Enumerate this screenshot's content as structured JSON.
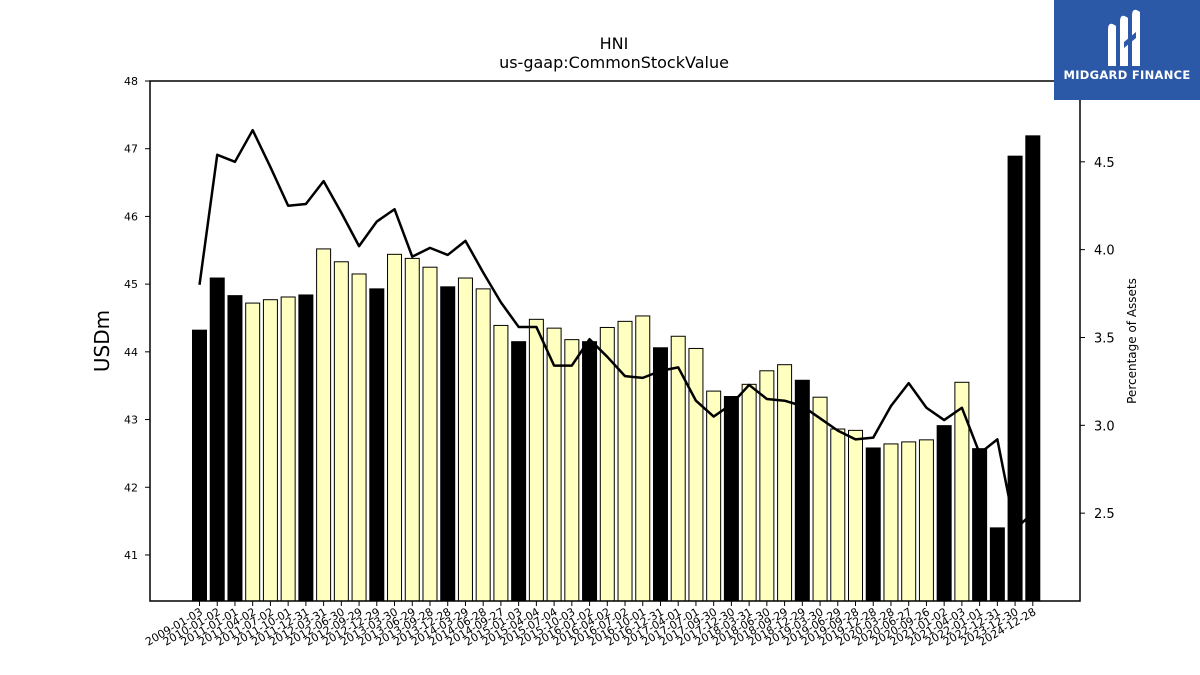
{
  "chart_data": {
    "type": "bar+line",
    "title": "HNI",
    "subtitle": "us-gaap:CommonStockValue",
    "ylabel": "USDm",
    "y2label": "Percentage of Assets",
    "ylim": [
      40.32,
      48.0
    ],
    "y2lim": [
      2.0,
      4.96
    ],
    "yticks": [
      41,
      42,
      43,
      44,
      45,
      46,
      47,
      48
    ],
    "y2ticks": [
      2.5,
      3.0,
      3.5,
      4.0,
      4.5
    ],
    "categories": [
      "2009-01-03",
      "2010-01-02",
      "2011-01-01",
      "2011-04-02",
      "2011-07-02",
      "2011-10-01",
      "2011-12-31",
      "2012-03-31",
      "2012-06-30",
      "2012-09-29",
      "2012-12-29",
      "2013-03-30",
      "2013-06-29",
      "2013-09-28",
      "2013-12-28",
      "2014-03-29",
      "2014-06-28",
      "2014-09-27",
      "2015-01-03",
      "2015-04-04",
      "2015-07-04",
      "2015-10-03",
      "2016-01-02",
      "2016-04-02",
      "2016-07-02",
      "2016-10-01",
      "2016-12-31",
      "2017-04-01",
      "2017-07-01",
      "2017-09-30",
      "2017-12-30",
      "2018-03-31",
      "2018-06-30",
      "2018-09-29",
      "2018-12-29",
      "2019-03-30",
      "2019-06-29",
      "2019-09-28",
      "2019-12-28",
      "2020-03-28",
      "2020-06-27",
      "2020-09-26",
      "2021-01-02",
      "2021-04-03",
      "2022-01-01",
      "2022-12-31",
      "2023-12-30",
      "2024-12-28"
    ],
    "series": [
      {
        "name": "",
        "type": "bar",
        "values": [
          44.32,
          45.09,
          44.83,
          44.72,
          44.77,
          44.81,
          44.84,
          45.52,
          45.33,
          45.15,
          44.93,
          45.44,
          45.38,
          45.25,
          44.96,
          45.09,
          44.93,
          44.39,
          44.15,
          44.48,
          44.35,
          44.18,
          44.15,
          44.36,
          44.45,
          44.53,
          44.06,
          44.23,
          44.05,
          43.42,
          43.34,
          43.52,
          43.72,
          43.81,
          43.58,
          43.33,
          42.86,
          42.84,
          42.58,
          42.64,
          42.67,
          42.7,
          42.91,
          43.55,
          42.57,
          41.4,
          46.89,
          47.19
        ],
        "emphasis": [
          1,
          1,
          1,
          0,
          0,
          0,
          1,
          0,
          0,
          0,
          1,
          0,
          0,
          0,
          1,
          0,
          0,
          0,
          1,
          0,
          0,
          0,
          1,
          0,
          0,
          0,
          1,
          0,
          0,
          0,
          1,
          0,
          0,
          0,
          1,
          0,
          0,
          0,
          1,
          0,
          0,
          0,
          1,
          0,
          1,
          1,
          1,
          1
        ],
        "colors": {
          "emphasized": "#000000",
          "normal": "#ffffc0",
          "edge": "#000000"
        }
      },
      {
        "name": "",
        "type": "line",
        "axis": "right",
        "color": "#000000",
        "values": [
          3.8,
          4.54,
          4.5,
          4.68,
          4.47,
          4.25,
          4.26,
          4.39,
          4.21,
          4.02,
          4.16,
          4.23,
          3.96,
          4.01,
          3.97,
          4.05,
          3.87,
          3.7,
          3.56,
          3.56,
          3.34,
          3.34,
          3.49,
          3.39,
          3.28,
          3.27,
          3.31,
          3.33,
          3.14,
          3.05,
          3.12,
          3.23,
          3.15,
          3.14,
          3.11,
          3.04,
          2.97,
          2.92,
          2.93,
          3.11,
          3.24,
          3.1,
          3.03,
          3.1,
          2.84,
          2.92,
          2.41,
          2.5
        ]
      }
    ]
  },
  "logo": {
    "text": "MIDGARD FINANCE",
    "icon": "midgard-m-icon",
    "background": "#2b59a8"
  }
}
